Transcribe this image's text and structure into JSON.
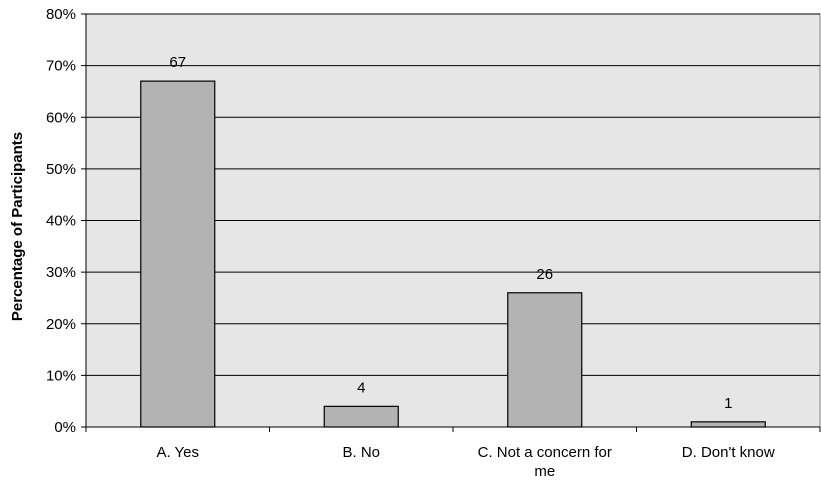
{
  "chart_data": {
    "type": "bar",
    "title": "",
    "xlabel": "",
    "ylabel": "Percentage of Participants",
    "categories": [
      [
        "A. Yes"
      ],
      [
        "B. No"
      ],
      [
        "C. Not a concern for",
        "me"
      ],
      [
        "D. Don't know"
      ]
    ],
    "values": [
      67,
      4,
      26,
      1
    ],
    "data_labels": [
      "67",
      "4",
      "26",
      "1"
    ],
    "ylim": [
      0,
      80
    ],
    "yticks": [
      "0%",
      "10%",
      "20%",
      "30%",
      "40%",
      "50%",
      "60%",
      "70%",
      "80%"
    ],
    "grid": true,
    "legend": "none",
    "colors": {
      "plot_bg": "#e6e6e6",
      "bar_fill": "#b3b3b3",
      "bar_stroke": "#000000",
      "grid": "#000000"
    }
  }
}
